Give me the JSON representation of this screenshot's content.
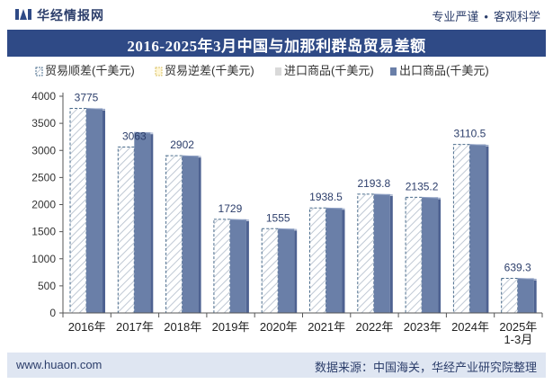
{
  "header": {
    "brand": "华经情报网",
    "tagline_left": "专业严谨",
    "tagline_sep": "•",
    "tagline_right": "客观科学"
  },
  "footer": {
    "website": "www.huaon.com",
    "source": "数据来源：中国海关，华经产业研究院整理"
  },
  "colors": {
    "title_bar": "#2f4a86",
    "export_bar": "#6a7fa8",
    "export_bar_side": "#4e6291",
    "import_bar": "#d9d9d9",
    "trade_diff_stroke": "#4a6c8c",
    "label_color": "#2c3e6b"
  },
  "chart_data": {
    "type": "bar",
    "title": "2016-2025年3月中国与加那利群岛贸易差额",
    "categories": [
      "2016年",
      "2017年",
      "2018年",
      "2019年",
      "2020年",
      "2021年",
      "2022年",
      "2023年",
      "2024年",
      "2025年\n1-3月"
    ],
    "series": [
      {
        "name": "贸易顺差(千美元)",
        "values": [
          3775,
          3063,
          2902,
          1729,
          1555,
          1938.5,
          2193.8,
          2135.2,
          3110.5,
          639.3
        ]
      },
      {
        "name": "贸易逆差(千美元)",
        "values": [
          0,
          0,
          0,
          0,
          0,
          0,
          0,
          0,
          0,
          0
        ]
      },
      {
        "name": "进口商品(千美元)",
        "values": [
          0,
          270,
          0,
          0,
          0,
          0,
          0,
          0,
          0,
          0
        ]
      },
      {
        "name": "出口商品(千美元)",
        "values": [
          3775,
          3333,
          2902,
          1729,
          1555,
          1938.5,
          2193.8,
          2135.2,
          3110.5,
          639.3
        ]
      }
    ],
    "data_labels": [
      "3775",
      "3063",
      "2902",
      "1729",
      "1555",
      "1938.5",
      "2193.8",
      "2135.2",
      "3110.5",
      "639.3"
    ],
    "ylim": [
      0,
      4000
    ],
    "yticks": [
      0,
      500,
      1000,
      1500,
      2000,
      2500,
      3000,
      3500,
      4000
    ],
    "legend_position": "top",
    "grid": false
  }
}
